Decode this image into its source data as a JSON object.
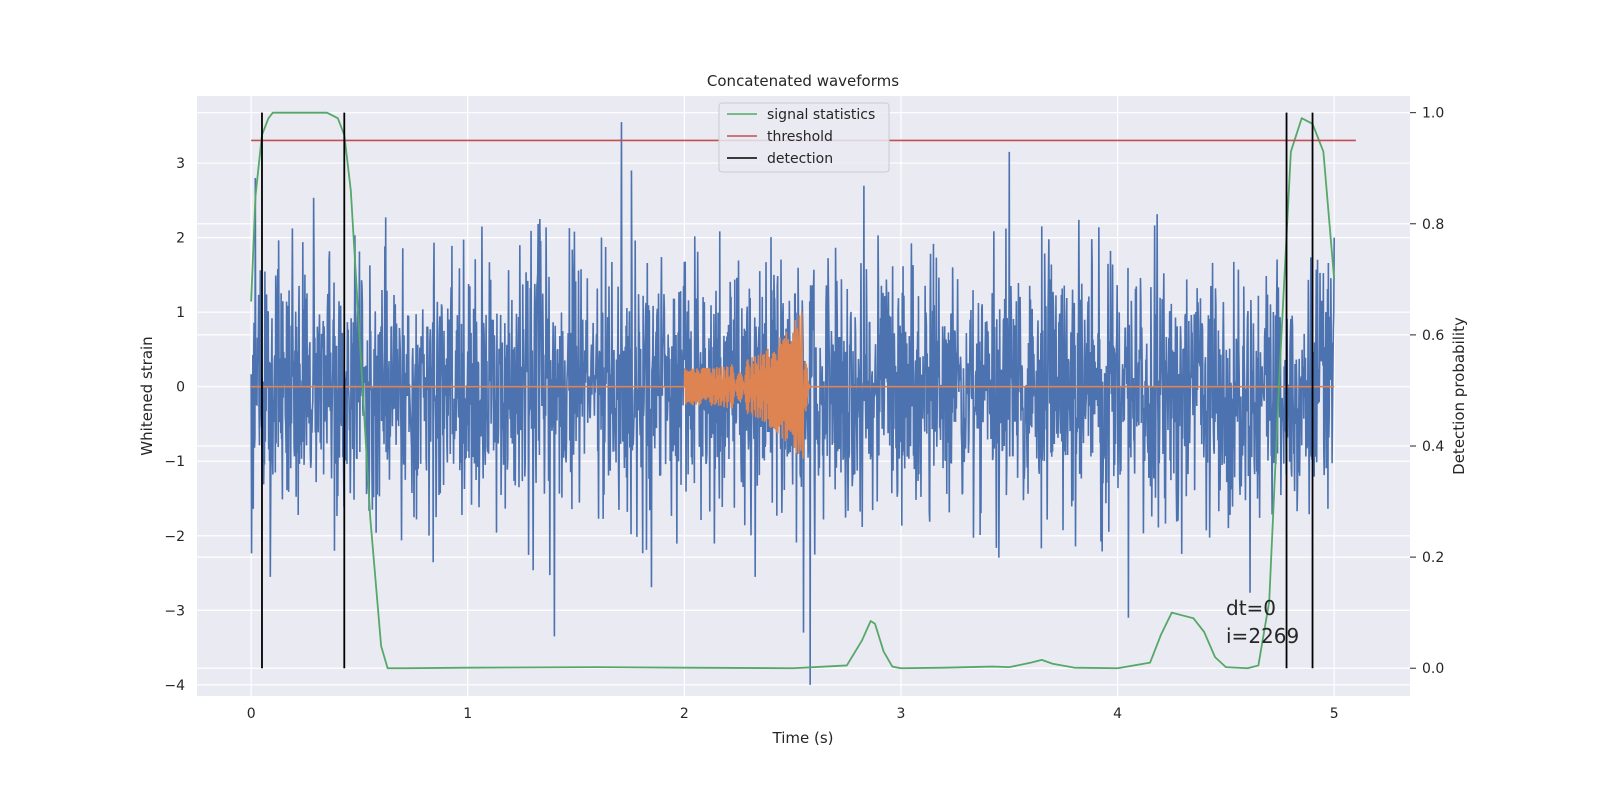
{
  "chart_data": {
    "type": "line",
    "title": "Concatenated waveforms",
    "xlabel": "Time (s)",
    "ylabel_left": "Whitened strain",
    "ylabel_right": "Detection probability",
    "xlim": [
      -0.25,
      5.35
    ],
    "ylim_left": [
      -4.15,
      3.9
    ],
    "ylim_right": [
      -0.05,
      1.03
    ],
    "x_ticks": [
      0,
      1,
      2,
      3,
      4,
      5
    ],
    "y_left_ticks": [
      -4,
      -3,
      -2,
      -1,
      0,
      1,
      2,
      3
    ],
    "y_right_ticks": [
      0.0,
      0.2,
      0.4,
      0.6,
      0.8,
      1.0
    ],
    "y_right_tick_labels": [
      "0.0",
      "0.2",
      "0.4",
      "0.6",
      "0.8",
      "1.0"
    ],
    "grid": true,
    "legend_placement": "upper-center",
    "legend": [
      {
        "label": "signal statistics",
        "color": "#55a868"
      },
      {
        "label": "threshold",
        "color": "#c44e52"
      },
      {
        "label": "detection",
        "color": "#000000"
      }
    ],
    "series": [
      {
        "name": "whitened strain noise",
        "color": "#4c72b0",
        "axis": "left",
        "x_range": [
          0,
          5
        ],
        "typical_range": [
          -2.5,
          2.5
        ],
        "peaks": [
          {
            "x": 1.71,
            "y": 3.55
          },
          {
            "x": 0.02,
            "y": 2.8
          },
          {
            "x": 2.58,
            "y": -4.0
          },
          {
            "x": 2.55,
            "y": -3.3
          },
          {
            "x": 1.4,
            "y": -3.35
          },
          {
            "x": 4.05,
            "y": -3.1
          },
          {
            "x": 3.5,
            "y": 3.15
          }
        ]
      },
      {
        "name": "injected waveform",
        "color": "#dd8452",
        "axis": "left",
        "x_range": [
          0,
          5
        ],
        "chirp_start": 2.0,
        "chirp_end": 2.55,
        "amplitude_start": 0.25,
        "amplitude_peak": 1.05
      },
      {
        "name": "signal statistics",
        "color": "#55a868",
        "axis": "right",
        "x": [
          0.0,
          0.02,
          0.05,
          0.08,
          0.1,
          0.15,
          0.25,
          0.35,
          0.4,
          0.43,
          0.46,
          0.5,
          0.55,
          0.6,
          0.63,
          0.7,
          1.0,
          1.6,
          2.0,
          2.5,
          2.75,
          2.82,
          2.86,
          2.88,
          2.92,
          2.96,
          3.0,
          3.2,
          3.42,
          3.5,
          3.6,
          3.65,
          3.7,
          3.8,
          4.0,
          4.15,
          4.2,
          4.25,
          4.3,
          4.35,
          4.4,
          4.45,
          4.5,
          4.6,
          4.65,
          4.7,
          4.75,
          4.8,
          4.85,
          4.9,
          4.95,
          5.0
        ],
        "y": [
          0.66,
          0.85,
          0.96,
          0.99,
          1.0,
          1.0,
          1.0,
          1.0,
          0.99,
          0.96,
          0.86,
          0.6,
          0.27,
          0.04,
          0.0,
          0.0,
          0.001,
          0.002,
          0.001,
          0.0,
          0.005,
          0.05,
          0.085,
          0.08,
          0.03,
          0.003,
          0.0,
          0.001,
          0.003,
          0.002,
          0.01,
          0.015,
          0.008,
          0.001,
          0.0,
          0.01,
          0.06,
          0.1,
          0.095,
          0.09,
          0.065,
          0.02,
          0.002,
          0.0,
          0.005,
          0.12,
          0.55,
          0.93,
          0.99,
          0.98,
          0.93,
          0.7
        ]
      },
      {
        "name": "threshold",
        "color": "#c44e52",
        "axis": "right",
        "x": [
          0.0,
          5.1
        ],
        "y": [
          0.95,
          0.95
        ]
      },
      {
        "name": "detection",
        "color": "#000000",
        "axis": "right",
        "x_positions": [
          0.05,
          0.43,
          4.78,
          4.9
        ],
        "y_range": [
          0.0,
          1.0
        ]
      }
    ],
    "annotations": [
      "dt=0",
      "i=2269"
    ]
  }
}
